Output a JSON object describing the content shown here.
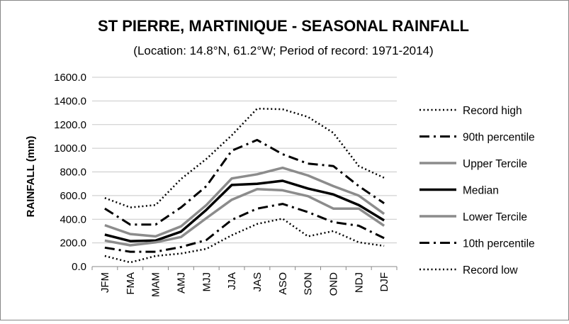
{
  "chart_data": {
    "type": "line",
    "title": "ST PIERRE, MARTINIQUE - SEASONAL RAINFALL",
    "subtitle": "(Location: 14.8°N, 61.2°W; Period of record: 1971-2014)",
    "xlabel": "",
    "ylabel": "RAINFALL (mm)",
    "ylim": [
      0,
      1600
    ],
    "yticks": [
      "0.0",
      "200.0",
      "400.0",
      "600.0",
      "800.0",
      "1000.0",
      "1200.0",
      "1400.0",
      "1600.0"
    ],
    "ytick_values": [
      0,
      200,
      400,
      600,
      800,
      1000,
      1200,
      1400,
      1600
    ],
    "categories": [
      "JFM",
      "FMA",
      "MAM",
      "AMJ",
      "MJJ",
      "JJA",
      "JAS",
      "ASO",
      "SON",
      "OND",
      "NDJ",
      "DJF"
    ],
    "grid": true,
    "legend_position": "right",
    "series": [
      {
        "name": "Record high",
        "style": "dotted",
        "color": "#000000",
        "values": [
          580,
          500,
          520,
          740,
          910,
          1110,
          1335,
          1330,
          1265,
          1130,
          850,
          750
        ]
      },
      {
        "name": "90th percentile",
        "style": "dashdot",
        "color": "#000000",
        "values": [
          490,
          355,
          355,
          500,
          680,
          980,
          1070,
          950,
          870,
          850,
          680,
          535
        ]
      },
      {
        "name": "Upper Tercile",
        "style": "solid",
        "color": "#8c8c8c",
        "values": [
          350,
          275,
          255,
          340,
          520,
          745,
          780,
          835,
          770,
          680,
          600,
          445
        ]
      },
      {
        "name": "Median",
        "style": "solid",
        "color": "#000000",
        "values": [
          270,
          215,
          220,
          295,
          480,
          690,
          700,
          725,
          660,
          610,
          520,
          390
        ]
      },
      {
        "name": "Lower Tercile",
        "style": "solid",
        "color": "#8c8c8c",
        "values": [
          220,
          180,
          205,
          250,
          410,
          565,
          655,
          645,
          595,
          490,
          490,
          345
        ]
      },
      {
        "name": "10th percentile",
        "style": "dashdot",
        "color": "#000000",
        "values": [
          160,
          125,
          125,
          165,
          225,
          395,
          490,
          530,
          460,
          375,
          345,
          240
        ]
      },
      {
        "name": "Record low",
        "style": "dotted",
        "color": "#000000",
        "values": [
          90,
          35,
          90,
          110,
          150,
          265,
          360,
          405,
          255,
          300,
          205,
          175
        ]
      }
    ]
  }
}
